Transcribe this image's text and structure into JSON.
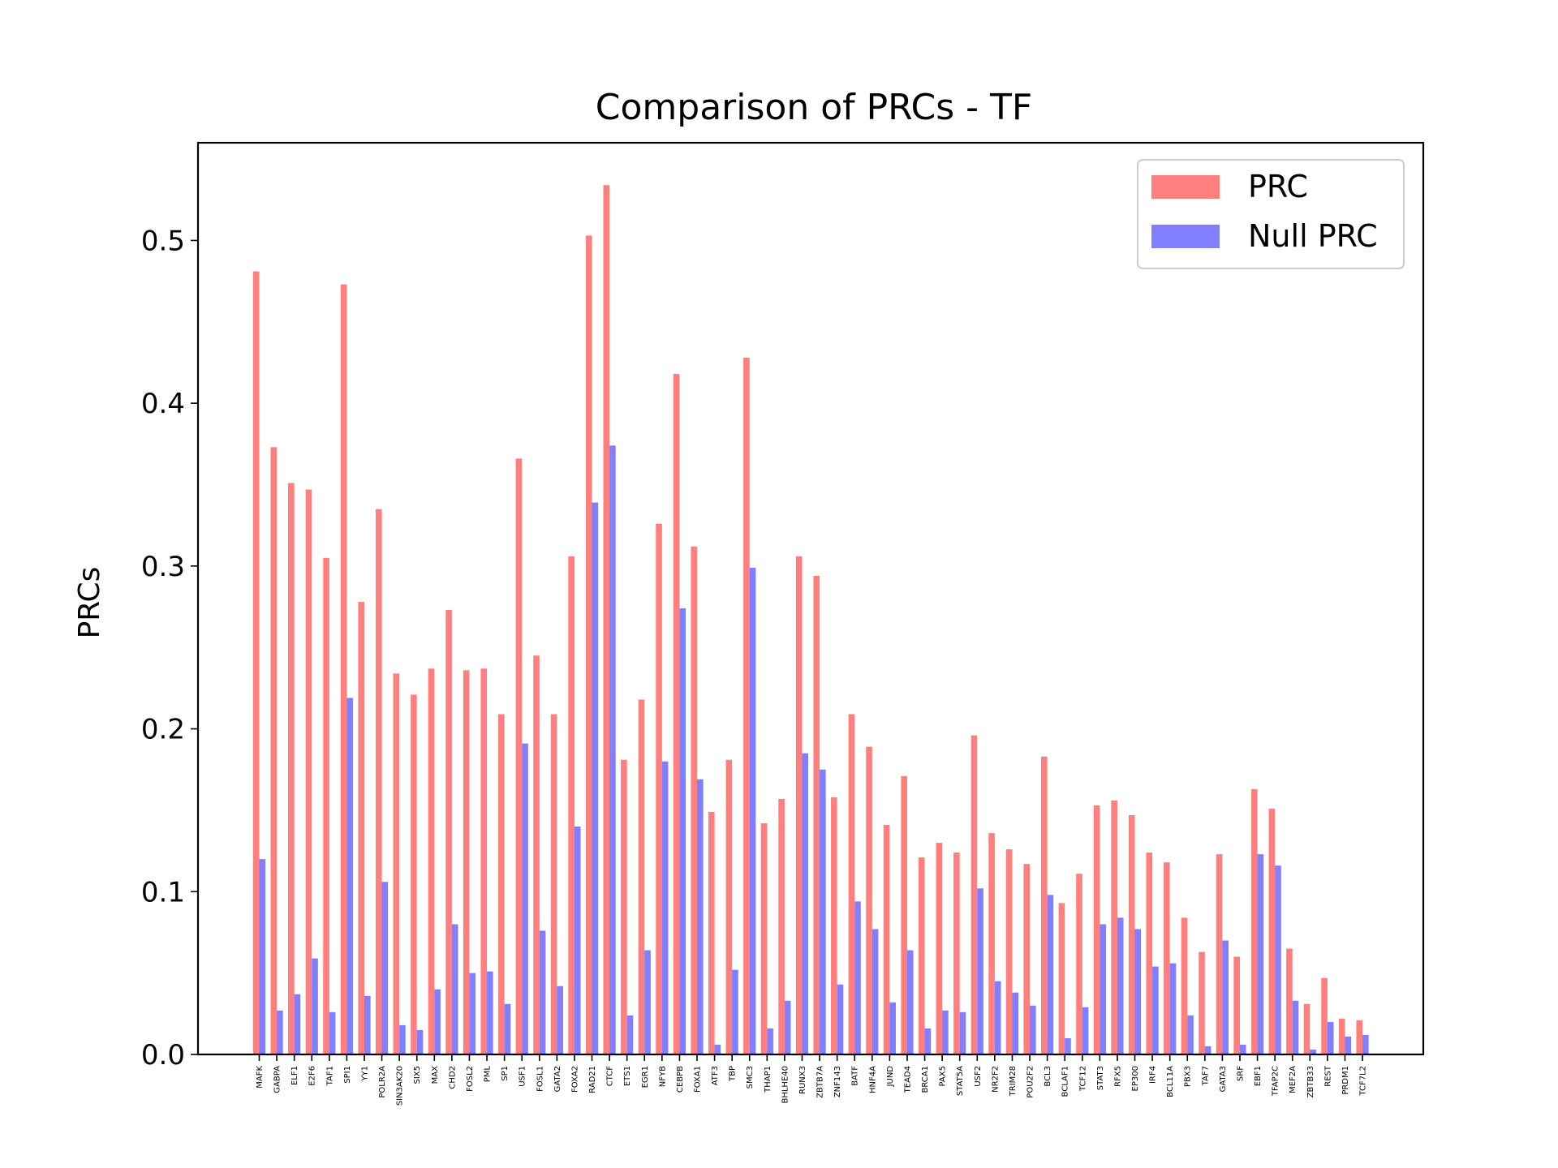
{
  "chart_data": {
    "type": "bar",
    "title": "Comparison of PRCs - TF",
    "xlabel": "",
    "ylabel": "PRCs",
    "ylim": [
      0,
      0.56
    ],
    "yticks": [
      "0.0",
      "0.1",
      "0.2",
      "0.3",
      "0.4",
      "0.5"
    ],
    "grid": false,
    "legend_position": "top-right",
    "categories": [
      "MAFK",
      "GABPA",
      "ELF1",
      "E2F6",
      "TAF1",
      "SPI1",
      "YY1",
      "POLR2A",
      "SIN3AK20",
      "SIX5",
      "MAX",
      "CHD2",
      "FOSL2",
      "PML",
      "SP1",
      "USF1",
      "FOSL1",
      "GATA2",
      "FOXA2",
      "RAD21",
      "CTCF",
      "ETS1",
      "EGR1",
      "NFYB",
      "CEBPB",
      "FOXA1",
      "ATF3",
      "TBP",
      "SMC3",
      "THAP1",
      "BHLHE40",
      "RUNX3",
      "ZBTB7A",
      "ZNF143",
      "BATF",
      "HNF4A",
      "JUND",
      "TEAD4",
      "BRCA1",
      "PAX5",
      "STAT5A",
      "USF2",
      "NR2F2",
      "TRIM28",
      "POU2F2",
      "BCL3",
      "BCLAF1",
      "TCF12",
      "STAT3",
      "RFX5",
      "EP300",
      "IRF4",
      "BCL11A",
      "PBX3",
      "TAF7",
      "GATA3",
      "SRF",
      "EBF1",
      "TFAP2C",
      "MEF2A",
      "ZBTB33",
      "REST",
      "PRDM1",
      "TCF7L2"
    ],
    "series": [
      {
        "name": "PRC",
        "color": "#ff7f7f",
        "values": [
          0.481,
          0.373,
          0.351,
          0.347,
          0.305,
          0.473,
          0.278,
          0.335,
          0.234,
          0.221,
          0.237,
          0.273,
          0.236,
          0.237,
          0.209,
          0.366,
          0.245,
          0.209,
          0.306,
          0.503,
          0.534,
          0.181,
          0.218,
          0.326,
          0.418,
          0.312,
          0.149,
          0.181,
          0.428,
          0.142,
          0.157,
          0.306,
          0.294,
          0.158,
          0.209,
          0.189,
          0.141,
          0.171,
          0.121,
          0.13,
          0.124,
          0.196,
          0.136,
          0.126,
          0.117,
          0.183,
          0.093,
          0.111,
          0.153,
          0.156,
          0.147,
          0.124,
          0.118,
          0.084,
          0.063,
          0.123,
          0.06,
          0.163,
          0.151,
          0.065,
          0.031,
          0.047,
          0.022,
          0.021
        ]
      },
      {
        "name": "Null PRC",
        "color": "#7f7fff",
        "values": [
          0.12,
          0.027,
          0.037,
          0.059,
          0.026,
          0.219,
          0.036,
          0.106,
          0.018,
          0.015,
          0.04,
          0.08,
          0.05,
          0.051,
          0.031,
          0.191,
          0.076,
          0.042,
          0.14,
          0.339,
          0.374,
          0.024,
          0.064,
          0.18,
          0.274,
          0.169,
          0.006,
          0.052,
          0.299,
          0.016,
          0.033,
          0.185,
          0.175,
          0.043,
          0.094,
          0.077,
          0.032,
          0.064,
          0.016,
          0.027,
          0.026,
          0.102,
          0.045,
          0.038,
          0.03,
          0.098,
          0.01,
          0.029,
          0.08,
          0.084,
          0.077,
          0.054,
          0.056,
          0.024,
          0.005,
          0.07,
          0.006,
          0.123,
          0.116,
          0.033,
          0.003,
          0.02,
          0.011,
          0.012
        ]
      }
    ]
  }
}
